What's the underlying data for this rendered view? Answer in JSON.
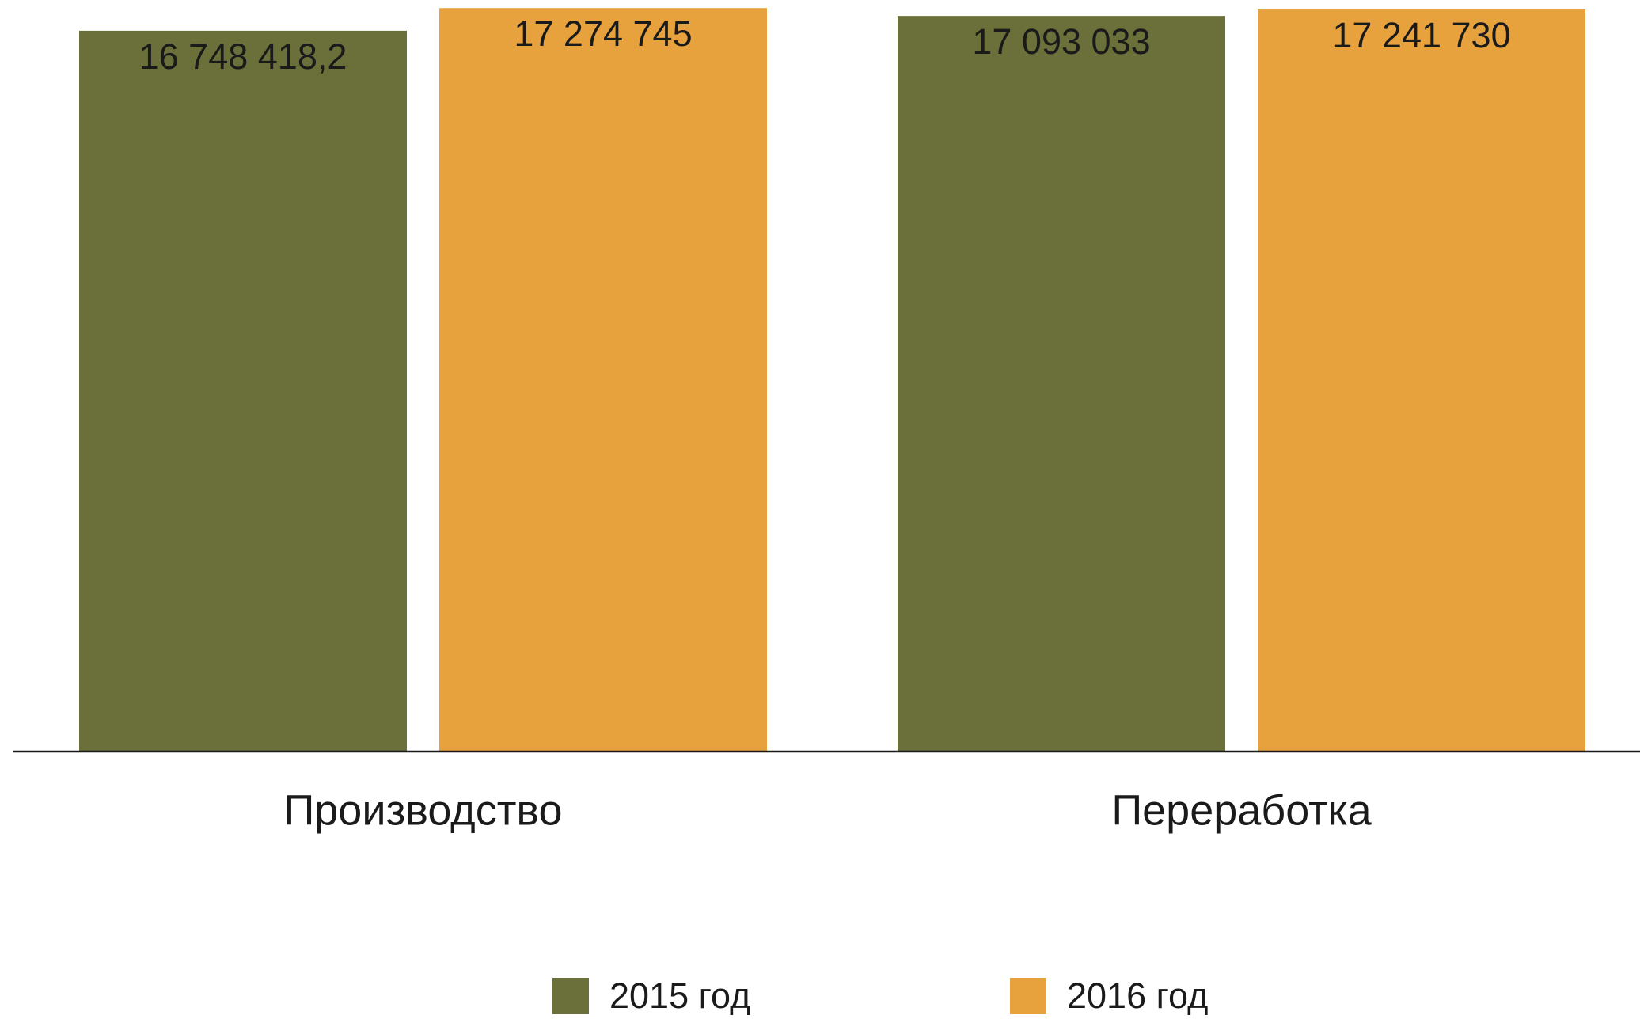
{
  "chart_data": {
    "type": "bar",
    "categories": [
      "Производство",
      "Переработка"
    ],
    "series": [
      {
        "name": "2015 год",
        "color": "#6b703b",
        "values": [
          16748418.2,
          17093033
        ],
        "value_labels": [
          "16 748 418,2",
          "17 093 033"
        ]
      },
      {
        "name": "2016 год",
        "color": "#e8a23d",
        "values": [
          17274745,
          17241730
        ],
        "value_labels": [
          "17 274 745",
          "17 241 730"
        ]
      }
    ],
    "ylim": [
      0,
      17500000
    ],
    "legend": "bottom"
  }
}
